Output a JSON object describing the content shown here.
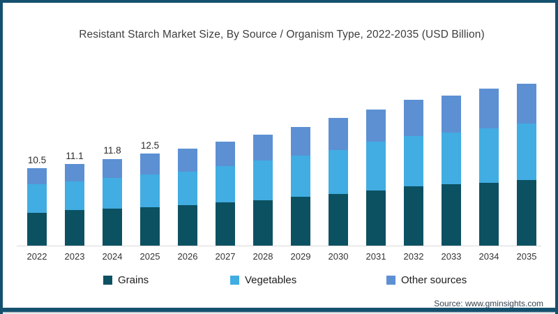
{
  "title": "Resistant Starch Market Size, By Source / Organism Type, 2022-2035 (USD Billion)",
  "source": "Source: www.gminsights.com",
  "colors": {
    "border": "#15516f",
    "axis": "#d9d9d9",
    "grains": "#0c5162",
    "vegetables": "#41ade2",
    "other_sources": "#5c90d3"
  },
  "chart_data": {
    "type": "bar",
    "stacked": true,
    "title": "Resistant Starch Market Size, By Source / Organism Type, 2022-2035 (USD Billion)",
    "xlabel": "",
    "ylabel": "",
    "grid": false,
    "y_axis_visible": false,
    "legend_position": "bottom",
    "categories": [
      "2022",
      "2023",
      "2024",
      "2025",
      "2026",
      "2027",
      "2028",
      "2029",
      "2030",
      "2031",
      "2032",
      "2033",
      "2034",
      "2035"
    ],
    "series": [
      {
        "name": "Grains",
        "color": "#0c5162",
        "values": [
          4.5,
          4.8,
          5.0,
          5.2,
          5.5,
          5.9,
          6.2,
          6.6,
          7.0,
          7.5,
          8.1,
          8.3,
          8.5,
          8.9
        ]
      },
      {
        "name": "Vegetables",
        "color": "#41ade2",
        "values": [
          3.8,
          3.9,
          4.2,
          4.5,
          4.6,
          4.9,
          5.4,
          5.6,
          6.0,
          6.6,
          6.8,
          7.1,
          7.4,
          7.7
        ]
      },
      {
        "name": "Other sources",
        "color": "#5c90d3",
        "values": [
          2.2,
          2.4,
          2.6,
          2.8,
          3.1,
          3.3,
          3.5,
          3.9,
          4.3,
          4.4,
          4.9,
          5.0,
          5.4,
          5.4
        ]
      }
    ],
    "totals": [
      10.5,
      11.1,
      11.8,
      12.5,
      13.2,
      14.1,
      15.1,
      16.1,
      17.3,
      18.5,
      19.8,
      20.4,
      21.3,
      22.0
    ],
    "data_labels": [
      "10.5",
      "11.1",
      "11.8",
      "12.5",
      "",
      "",
      "",
      "",
      "",
      "",
      "",
      "",
      "",
      ""
    ]
  }
}
